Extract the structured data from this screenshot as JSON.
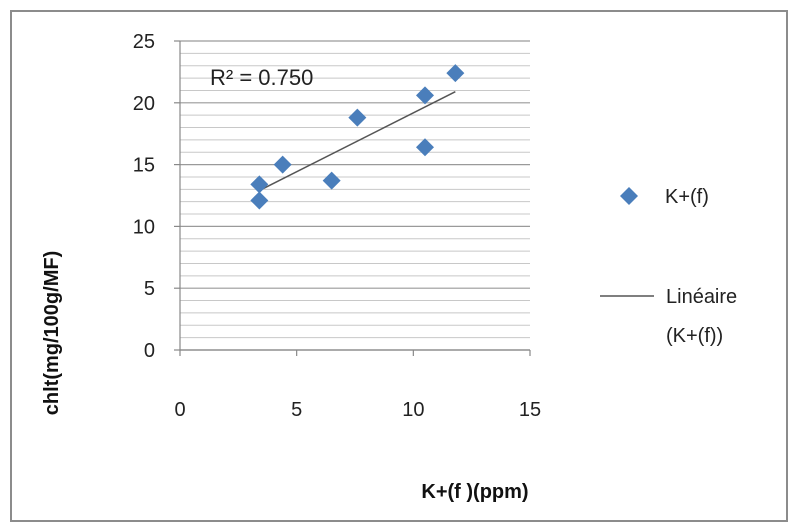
{
  "chart_data": {
    "type": "scatter",
    "xlabel": "K+(f )(ppm)",
    "ylabel": "chlt(mg/100g/MF)",
    "xlim": [
      0,
      15
    ],
    "ylim": [
      0,
      25
    ],
    "x_ticks": [
      "0",
      "5",
      "10",
      "15"
    ],
    "y_ticks": [
      "0",
      "5",
      "10",
      "15",
      "20",
      "25"
    ],
    "grid": true,
    "series": [
      {
        "name": "K+(f)",
        "color": "#4a7ebb",
        "marker": "diamond",
        "points": [
          {
            "x": 3.4,
            "y": 12.1
          },
          {
            "x": 3.4,
            "y": 13.4
          },
          {
            "x": 4.4,
            "y": 15.0
          },
          {
            "x": 6.5,
            "y": 13.7
          },
          {
            "x": 7.6,
            "y": 18.8
          },
          {
            "x": 10.5,
            "y": 16.4
          },
          {
            "x": 10.5,
            "y": 20.6
          },
          {
            "x": 11.8,
            "y": 22.4
          }
        ]
      }
    ],
    "trendline": {
      "name_line1": "Linéaire",
      "name_line2": "(K+(f))",
      "color": "#555555",
      "x": [
        3.4,
        11.8
      ],
      "y": [
        12.9,
        20.9
      ]
    },
    "annotation": "R² = 0.750",
    "legend_position": "right"
  }
}
